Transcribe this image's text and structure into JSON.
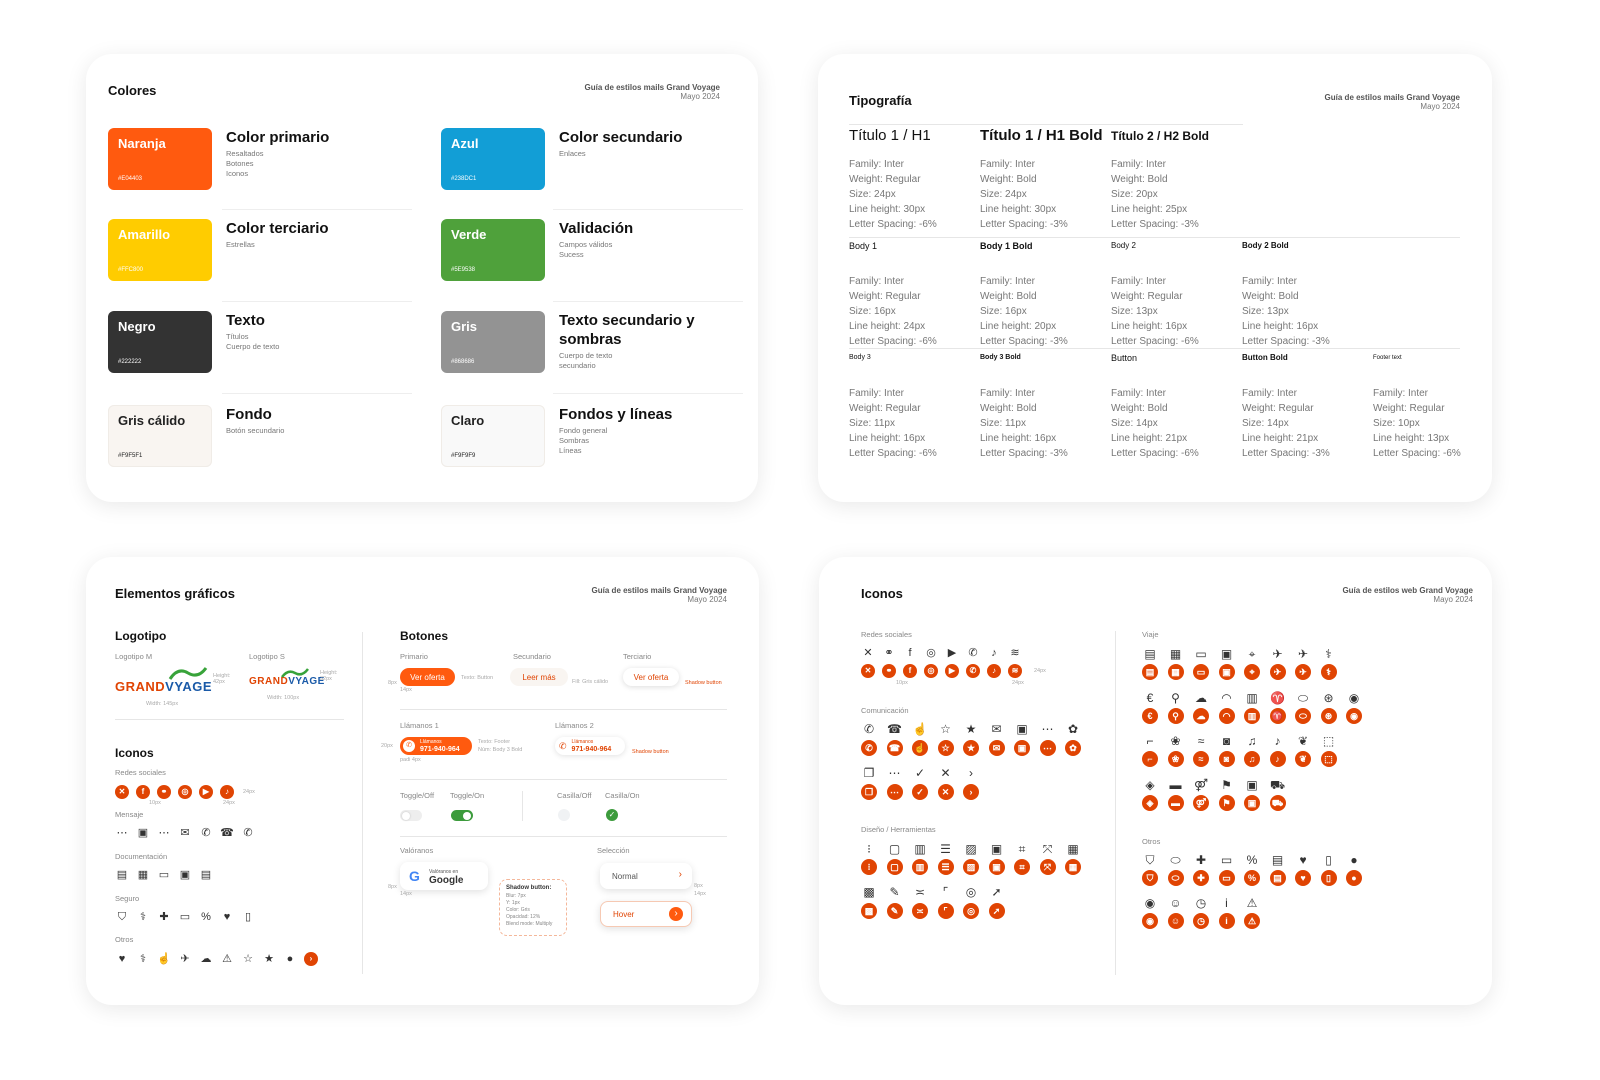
{
  "colores": {
    "title": "Colores",
    "meta": {
      "title": "Guía de estilos mails Grand Voyage",
      "date": "Mayo 2024"
    },
    "items": [
      {
        "name": "Naranja",
        "hex": "#E04403",
        "color": "#FF5A0F",
        "title": "Color primario",
        "uses": [
          "Resaltados",
          "Botones",
          "Iconos"
        ]
      },
      {
        "name": "Azul",
        "hex": "#238DC1",
        "color": "#129ED6",
        "title": "Color secundario",
        "uses": [
          "Enlaces"
        ]
      },
      {
        "name": "Amarillo",
        "hex": "#FFC800",
        "color": "#FFCC00",
        "title": "Color terciario",
        "uses": [
          "Estrellas"
        ]
      },
      {
        "name": "Verde",
        "hex": "#5E9538",
        "color": "#4FA13B",
        "title": "Validación",
        "uses": [
          "Campos válidos",
          "Sucess"
        ]
      },
      {
        "name": "Negro",
        "hex": "#222222",
        "color": "#333333",
        "title": "Texto",
        "uses": [
          "Títulos",
          "Cuerpo de texto"
        ]
      },
      {
        "name": "Gris",
        "hex": "#868686",
        "color": "#939393",
        "title": "Texto secundario y sombras",
        "uses": [
          "Cuerpo de texto",
          "secundario"
        ]
      },
      {
        "name": "Gris cálido",
        "hex": "#F9F5F1",
        "color": "#F9F5F1",
        "title": "Fondo",
        "uses": [
          "Botón secundario"
        ]
      },
      {
        "name": "Claro",
        "hex": "#F9F9F9",
        "color": "#F9F9F9",
        "title": "Fondos y líneas",
        "uses": [
          "Fondo general",
          "Sombras",
          "Líneas"
        ]
      }
    ]
  },
  "tipografia": {
    "title": "Tipografía",
    "meta": {
      "title": "Guía de estilos mails Grand Voyage",
      "date": "Mayo 2024"
    },
    "rows": [
      [
        {
          "name": "Título 1 / H1",
          "specs": [
            "Family: Inter",
            "Weight: Regular",
            "Size: 24px",
            "Line height: 30px",
            "Letter Spacing: -6%"
          ]
        },
        {
          "name": "Título 1 / H1 Bold",
          "specs": [
            "Family: Inter",
            "Weight: Bold",
            "Size: 24px",
            "Line height: 30px",
            "Letter Spacing: -3%"
          ]
        },
        {
          "name": "Título 2 / H2 Bold",
          "specs": [
            "Family: Inter",
            "Weight: Bold",
            "Size: 20px",
            "Line height: 25px",
            "Letter Spacing: -3%"
          ]
        }
      ],
      [
        {
          "name": "Body 1",
          "specs": [
            "Family: Inter",
            "Weight: Regular",
            "Size: 16px",
            "Line height: 24px",
            "Letter Spacing: -6%"
          ]
        },
        {
          "name": "Body 1 Bold",
          "specs": [
            "Family: Inter",
            "Weight: Bold",
            "Size: 16px",
            "Line height: 20px",
            "Letter Spacing: -3%"
          ]
        },
        {
          "name": "Body 2",
          "specs": [
            "Family: Inter",
            "Weight: Regular",
            "Size: 13px",
            "Line height: 16px",
            "Letter Spacing: -6%"
          ]
        },
        {
          "name": "Body 2 Bold",
          "specs": [
            "Family: Inter",
            "Weight: Bold",
            "Size: 13px",
            "Line height: 16px",
            "Letter Spacing: -3%"
          ]
        }
      ],
      [
        {
          "name": "Body 3",
          "specs": [
            "Family: Inter",
            "Weight: Regular",
            "Size: 11px",
            "Line height: 16px",
            "Letter Spacing: -6%"
          ]
        },
        {
          "name": "Body 3 Bold",
          "specs": [
            "Family: Inter",
            "Weight: Bold",
            "Size: 11px",
            "Line height: 16px",
            "Letter Spacing: -3%"
          ]
        },
        {
          "name": "Button",
          "specs": [
            "Family: Inter",
            "Weight: Bold",
            "Size: 14px",
            "Line height: 21px",
            "Letter Spacing: -6%"
          ]
        },
        {
          "name": "Button Bold",
          "specs": [
            "Family: Inter",
            "Weight: Regular",
            "Size: 14px",
            "Line height: 21px",
            "Letter Spacing: -3%"
          ]
        },
        {
          "name": "Footer text",
          "specs": [
            "Family: Inter",
            "Weight: Regular",
            "Size: 10px",
            "Line height: 13px",
            "Letter Spacing: -6%"
          ]
        }
      ]
    ]
  },
  "elementos": {
    "title": "Elementos gráficos",
    "meta": {
      "title": "Guía de estilos mails Grand Voyage",
      "date": "Mayo 2024"
    },
    "logotipo": {
      "title": "Logotipo",
      "m_label": "Logotipo M",
      "s_label": "Logotipo S",
      "logo_a": "GRAN",
      "logo_d": "D",
      "logo_b": "V",
      "logo_c": "YAGE",
      "m_height": "Height: 42px",
      "m_width": "Width: 145px",
      "s_height": "Height: 32px",
      "s_width": "Width: 100px"
    },
    "iconos": {
      "title": "Iconos",
      "redes_label": "Redes sociales",
      "mensaje_label": "Mensaje",
      "documentacion_label": "Documentación",
      "seguro_label": "Seguro",
      "otros_label": "Otros",
      "gap_label": "10px",
      "size_label": "24px"
    },
    "botones": {
      "title": "Botones",
      "primario_label": "Primario",
      "secundario_label": "Secundario",
      "terciario_label": "Terciario",
      "ver_oferta": "Ver oferta",
      "leer_mas": "Leer más",
      "texto_boton": "Texto: Button",
      "fill_label": "Fill: Gris cálido",
      "shadow_label": "Shadow button",
      "pad_8": "8px",
      "pad_14": "14px",
      "pad_20": "20px",
      "pad_4": "padi 4px",
      "llamanos1_label": "Llámanos 1",
      "llamanos2_label": "Llámanos 2",
      "llamanos_small": "Llámanos",
      "phone": "971-940-964",
      "texto_footer": "Texto: Footer",
      "num_label": "Núm: Body 3 Bold",
      "toggle_off": "Toggle/Off",
      "toggle_on": "Toggle/On",
      "casilla_off": "Casilla/Off",
      "casilla_on": "Casilla/On",
      "valoranos_label": "Valóranos",
      "seleccion_label": "Selección",
      "valoranos_en": "Valóranos en",
      "google": "Google",
      "normal": "Normal",
      "hover": "Hover",
      "shadow_title": "Shadow button:",
      "shadow_specs": [
        "Blur: 7px",
        "Y: 1px",
        "Color: Gris",
        "Opacidad: 12%",
        "Blend mode: Multiply"
      ]
    }
  },
  "iconos": {
    "title": "Iconos",
    "meta": {
      "title": "Guía de estilos web Grand Voyage",
      "date": "Mayo 2024"
    },
    "redes_label": "Redes sociales",
    "comunicacion_label": "Comunicación",
    "diseno_label": "Diseño / Herramientas",
    "viaje_label": "Viaje",
    "otros_label": "Otros",
    "size_label": "24px",
    "gap_label": "10px"
  },
  "icons": {
    "redes": [
      "x-icon",
      "link-icon",
      "facebook-icon",
      "instagram-icon",
      "youtube-icon",
      "whatsapp-icon",
      "tiktok-icon",
      "spotify-icon"
    ],
    "comunicacion_1": [
      "phone-icon",
      "phone-filled-icon",
      "thumbs-up-icon",
      "star-outline-icon",
      "star-filled-icon",
      "mail-icon",
      "chat-icon",
      "message-dots-icon",
      "gift-icon"
    ],
    "comunicacion_2": [
      "chats-icon",
      "comment-icon",
      "check-icon",
      "close-icon",
      "chevron-right-icon"
    ],
    "diseno_1": [
      "dots-icon",
      "frame-icon",
      "carousel-icon",
      "layers-icon",
      "image-icon",
      "photo-icon",
      "crop-icon",
      "resize-icon",
      "grid-icon"
    ],
    "diseno_2": [
      "gallery-icon",
      "edit-icon",
      "align-icon",
      "corner-icon",
      "target-icon",
      "cursor-icon"
    ],
    "viaje_1": [
      "passport-icon",
      "calendar-icon",
      "ticket-icon",
      "luggage-icon",
      "map-pin-icon",
      "plane-icon",
      "airplane-icon",
      "stethoscope-icon"
    ],
    "viaje_2": [
      "euro-icon",
      "walk-icon",
      "weather-icon",
      "wifi-icon",
      "building-icon",
      "shirt-icon",
      "pill-icon",
      "steering-wheel-icon",
      "location-icon"
    ],
    "viaje_3": [
      "hairdryer-icon",
      "pet-icon",
      "pool-icon",
      "camera-icon",
      "music-icon",
      "bell-icon",
      "nature-icon",
      "badge-icon"
    ],
    "viaje_4": [
      "shield-swirl-icon",
      "bed-icon",
      "restroom-icon",
      "flag-icon",
      "bag-icon",
      "car-icon"
    ],
    "otros_1": [
      "shield-check-icon",
      "pills-icon",
      "health-icon",
      "card-icon",
      "discount-icon",
      "document-icon",
      "user-heart-icon",
      "phone-device-icon",
      "apple-icon"
    ],
    "otros_2": [
      "location-user-icon",
      "user-circle-icon",
      "clock-icon",
      "info-icon",
      "warning-icon"
    ]
  }
}
